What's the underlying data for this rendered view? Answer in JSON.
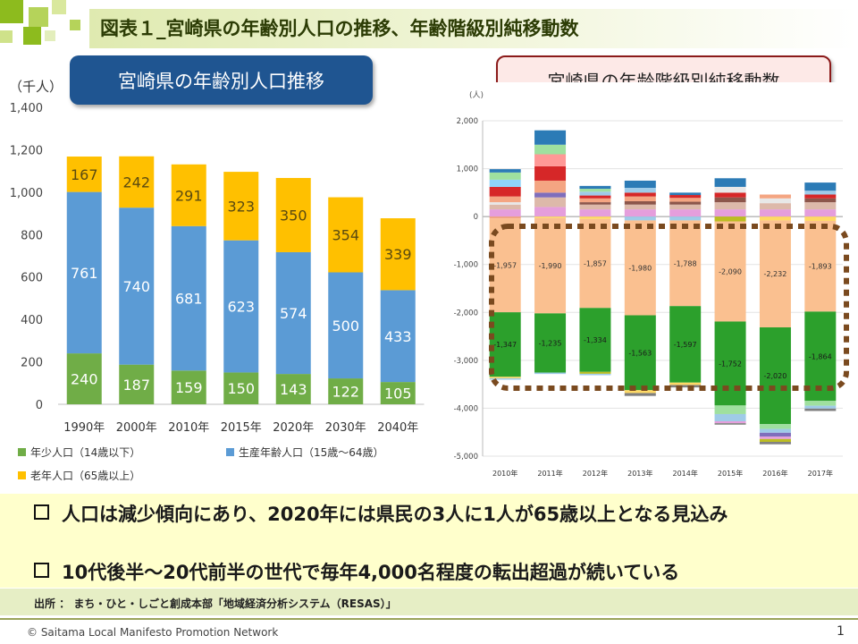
{
  "header": {
    "title": "図表１_宮崎県の年齢別人口の推移、年齢階級別純移動数",
    "colors": {
      "accent": "#8dbb1e",
      "title": "#2c3c05"
    }
  },
  "left_panel": {
    "badge": "宮崎県の年齢別人口推移",
    "unit": "（千人）"
  },
  "right_panel": {
    "badge": "宮崎県の年齢階級別純移動数",
    "unit": "(人)"
  },
  "chart_data": [
    {
      "type": "bar",
      "stacked": true,
      "categories": [
        "1990年",
        "2000年",
        "2010年",
        "2015年",
        "2020年",
        "2030年",
        "2040年"
      ],
      "series": [
        {
          "name": "年少人口（14歳以下）",
          "color": "#70ad47",
          "values": [
            240,
            187,
            159,
            150,
            143,
            122,
            105
          ]
        },
        {
          "name": "生産年齢人口（15歳～64歳）",
          "color": "#5b9bd5",
          "values": [
            761,
            740,
            681,
            623,
            574,
            500,
            433
          ]
        },
        {
          "name": "老年人口（65歳以上）",
          "color": "#ffc000",
          "values": [
            167,
            242,
            291,
            323,
            350,
            354,
            339
          ]
        }
      ],
      "ylim": [
        0,
        1400
      ],
      "yticks": [
        "0",
        "200",
        "400",
        "600",
        "800",
        "1,000",
        "1,200",
        "1,400"
      ],
      "grid": false,
      "legend": "bottom"
    },
    {
      "type": "bar",
      "stacked": true,
      "categories": [
        "2010年",
        "2011年",
        "2012年",
        "2013年",
        "2014年",
        "2015年",
        "2016年",
        "2017年"
      ],
      "ylim": [
        -5000,
        2000
      ],
      "yticks": [
        "-5,000",
        "-4,000",
        "-3,000",
        "-2,000",
        "-1,000",
        "0",
        "1,000",
        "2,000"
      ],
      "grid": true,
      "labeled_series": [
        {
          "color": "#fac090",
          "values": [
            -1957,
            -1990,
            -1857,
            -1980,
            -1788,
            -2090,
            -2232,
            -1893
          ],
          "labels": [
            "-1,957",
            "-1,990",
            "-1,857",
            "-1,980",
            "-1,788",
            "-2,090",
            "-2,232",
            "-1,893"
          ]
        },
        {
          "color": "#2ca02c",
          "values": [
            -1347,
            -1235,
            -1334,
            -1563,
            -1597,
            -1752,
            -2020,
            -1864
          ],
          "labels": [
            "-1,347",
            "-1,235",
            "-1,334",
            "-1,563",
            "-1,597",
            "-1,752",
            "-2,020",
            "-1,864"
          ]
        }
      ],
      "other_segments": [
        {
          "pos": [
            [
              150,
              "#e59edc"
            ],
            [
              100,
              "#ddb9aa"
            ],
            [
              50,
              "#e8e8e8"
            ],
            [
              120,
              "#f4a582"
            ],
            [
              200,
              "#d62728"
            ],
            [
              150,
              "#8fd3f7"
            ],
            [
              150,
              "#9fe09f"
            ],
            [
              70,
              "#2c7bb6"
            ]
          ],
          "neg": [
            [
              40,
              "#f4a582"
            ],
            [
              30,
              "#ffd966"
            ],
            [
              30,
              "#9fcbe8"
            ]
          ]
        },
        {
          "pos": [
            [
              200,
              "#e59edc"
            ],
            [
              200,
              "#ddb9aa"
            ],
            [
              100,
              "#7f6ebc"
            ],
            [
              250,
              "#f4a582"
            ],
            [
              300,
              "#d62728"
            ],
            [
              250,
              "#ff9896"
            ],
            [
              200,
              "#9fe09f"
            ],
            [
              300,
              "#2c7bb6"
            ]
          ],
          "neg": [
            [
              30,
              "#ffd966"
            ],
            [
              30,
              "#9fcbe8"
            ]
          ]
        },
        {
          "pos": [
            [
              150,
              "#e59edc"
            ],
            [
              100,
              "#ddb9aa"
            ],
            [
              50,
              "#8c564b"
            ],
            [
              80,
              "#f4a582"
            ],
            [
              60,
              "#d62728"
            ],
            [
              80,
              "#9fcbe8"
            ],
            [
              60,
              "#9fe09f"
            ],
            [
              60,
              "#2c7bb6"
            ]
          ],
          "neg": [
            [
              50,
              "#ffd966"
            ],
            [
              40,
              "#bcbd22"
            ],
            [
              30,
              "#9fcbe8"
            ]
          ]
        },
        {
          "pos": [
            [
              150,
              "#e59edc"
            ],
            [
              100,
              "#ddb9aa"
            ],
            [
              70,
              "#8c564b"
            ],
            [
              100,
              "#f4a582"
            ],
            [
              80,
              "#d62728"
            ],
            [
              100,
              "#9fcbe8"
            ],
            [
              150,
              "#2c7bb6"
            ]
          ],
          "neg": [
            [
              80,
              "#9fcbe8"
            ],
            [
              60,
              "#ffd966"
            ],
            [
              60,
              "#7f7f7f"
            ]
          ]
        },
        {
          "pos": [
            [
              150,
              "#e59edc"
            ],
            [
              100,
              "#ddb9aa"
            ],
            [
              60,
              "#8c564b"
            ],
            [
              80,
              "#f4a582"
            ],
            [
              60,
              "#d62728"
            ],
            [
              50,
              "#2c7bb6"
            ]
          ],
          "neg": [
            [
              80,
              "#9fcbe8"
            ],
            [
              50,
              "#ffd966"
            ],
            [
              50,
              "#7f7f7f"
            ]
          ]
        },
        {
          "pos": [
            [
              150,
              "#e59edc"
            ],
            [
              150,
              "#ddb9aa"
            ],
            [
              100,
              "#8c564b"
            ],
            [
              100,
              "#d62728"
            ],
            [
              120,
              "#e8e8e8"
            ],
            [
              180,
              "#2c7bb6"
            ]
          ],
          "neg": [
            [
              100,
              "#bcbd22"
            ],
            [
              180,
              "#9fe09f"
            ],
            [
              150,
              "#9fcbe8"
            ],
            [
              40,
              "#e59edc"
            ],
            [
              30,
              "#7f7f7f"
            ]
          ]
        },
        {
          "pos": [
            [
              150,
              "#e59edc"
            ],
            [
              130,
              "#ddb9aa"
            ],
            [
              100,
              "#e8e8e8"
            ],
            [
              80,
              "#f4a582"
            ]
          ],
          "neg": [
            [
              80,
              "#ffd966"
            ],
            [
              100,
              "#9fe09f"
            ],
            [
              80,
              "#9fcbe8"
            ],
            [
              80,
              "#7f6ebc"
            ],
            [
              50,
              "#e59edc"
            ],
            [
              60,
              "#bcbd22"
            ],
            [
              50,
              "#7f7f7f"
            ]
          ]
        },
        {
          "pos": [
            [
              150,
              "#e59edc"
            ],
            [
              150,
              "#ddb9aa"
            ],
            [
              80,
              "#8c564b"
            ],
            [
              80,
              "#d62728"
            ],
            [
              80,
              "#9fcbe8"
            ],
            [
              170,
              "#2c7bb6"
            ]
          ],
          "neg": [
            [
              90,
              "#ffd966"
            ],
            [
              100,
              "#9fe09f"
            ],
            [
              60,
              "#9fcbe8"
            ],
            [
              50,
              "#7f7f7f"
            ]
          ]
        }
      ],
      "highlight": {
        "color": "#7a4a1f"
      }
    }
  ],
  "bullets": [
    "人口は減少傾向にあり、2020年には県民の3人に1人が65歳以上となる見込み",
    "10代後半～20代前半の世代で毎年4,000名程度の転出超過が続いている"
  ],
  "source": "出所 ： まち・ひと・しごと創成本部「地域経済分析システム（RESAS）」",
  "footer": {
    "copyright": "© Saitama Local Manifesto Promotion Network",
    "page": "1"
  }
}
